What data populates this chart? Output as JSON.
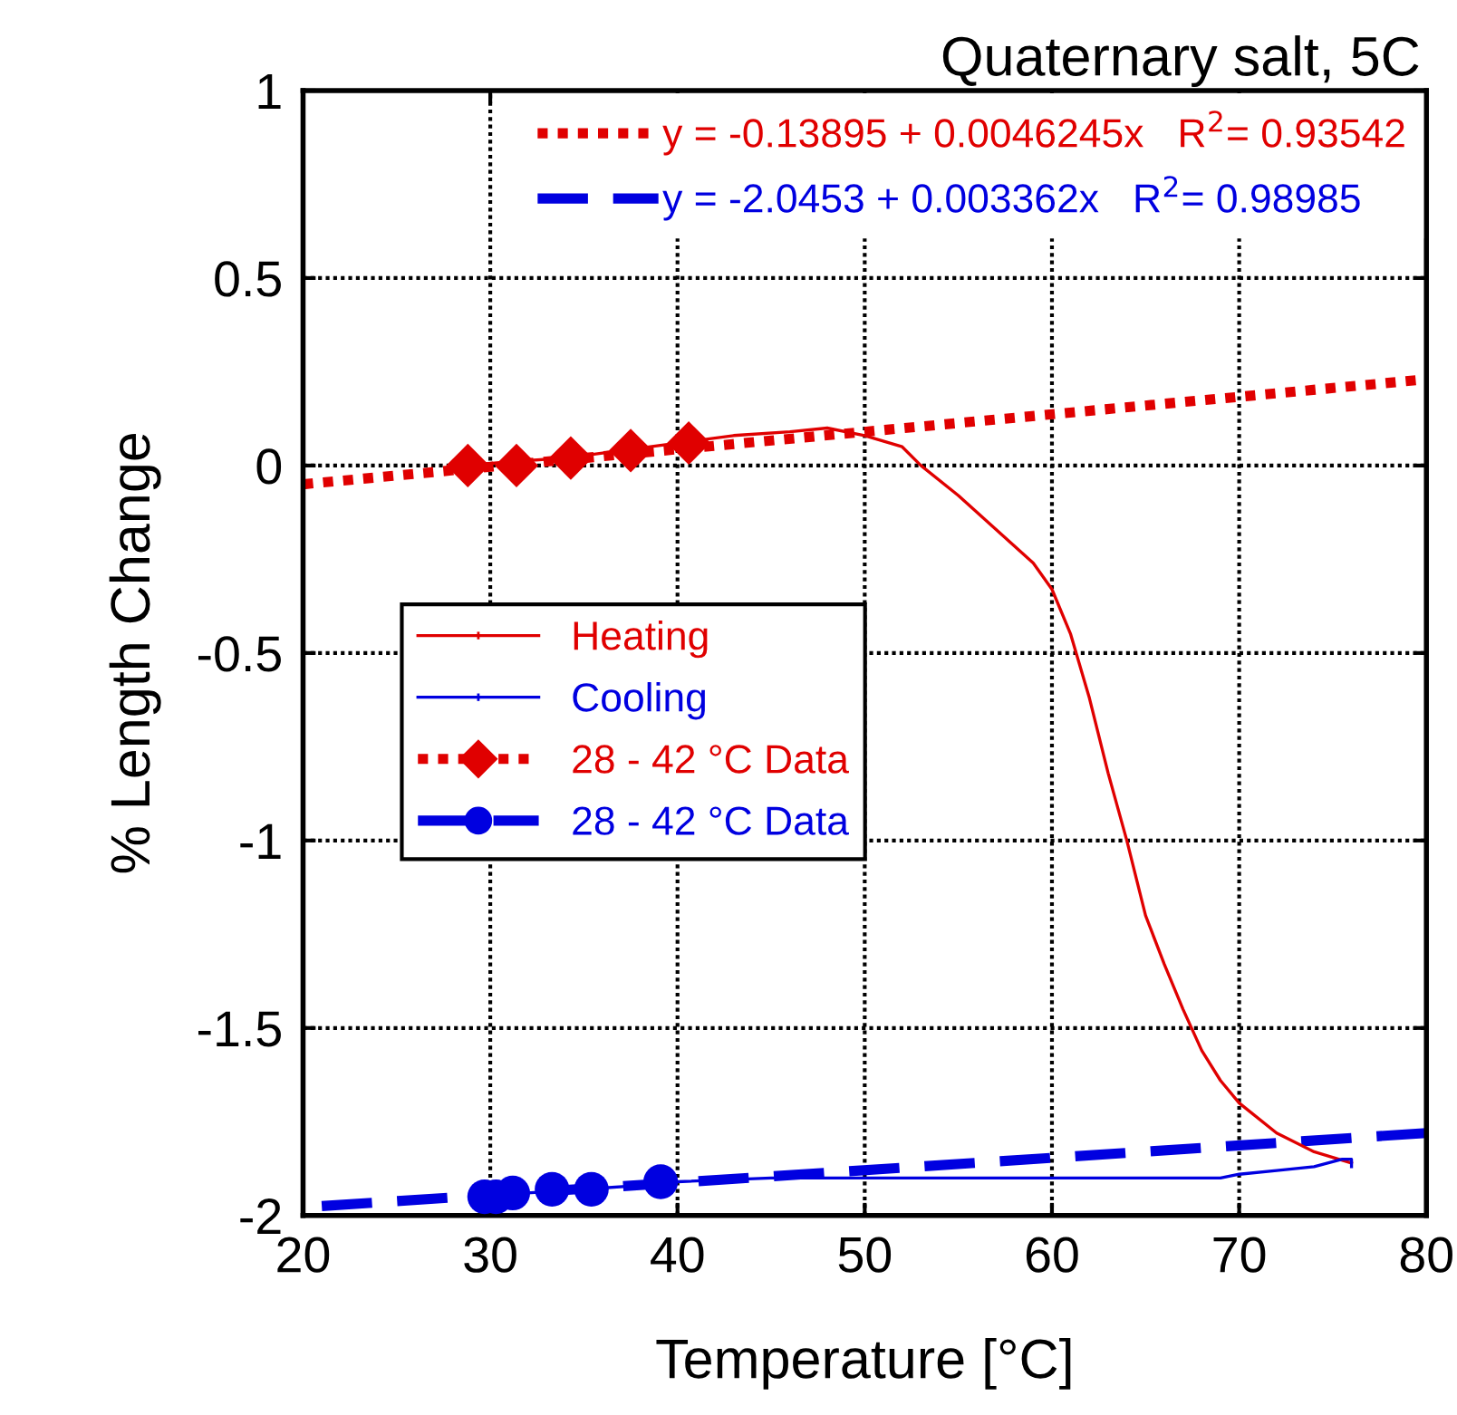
{
  "chart_data": {
    "type": "line",
    "title": "Quaternary salt, 5C",
    "xlabel": "Temperature [°C]",
    "ylabel": "% Length Change",
    "xlim": [
      20,
      80
    ],
    "xticks": [
      20,
      30,
      40,
      50,
      60,
      70,
      80
    ],
    "ylim": [
      -2,
      1
    ],
    "yticks": [
      -2,
      -1.5,
      -1,
      -0.5,
      0,
      0.5,
      1
    ],
    "grid": true,
    "legend": "left",
    "series": [
      {
        "name": "Heating",
        "color": "#e00000",
        "x": [
          28.8,
          31,
          34,
          37,
          40,
          43,
          46,
          48,
          50,
          52,
          53,
          55,
          57,
          59,
          60,
          61,
          62,
          63,
          64,
          65,
          66,
          67,
          68,
          69,
          70,
          72,
          74,
          76
        ],
        "values": [
          0.0,
          0.01,
          0.02,
          0.04,
          0.06,
          0.08,
          0.09,
          0.1,
          0.08,
          0.05,
          0.0,
          -0.08,
          -0.17,
          -0.26,
          -0.33,
          -0.45,
          -0.62,
          -0.82,
          -1.0,
          -1.2,
          -1.33,
          -1.45,
          -1.56,
          -1.64,
          -1.7,
          -1.78,
          -1.83,
          -1.86
        ]
      },
      {
        "name": "Cooling",
        "color": "#0000e0",
        "x": [
          29.4,
          32,
          35,
          38,
          40,
          45,
          50,
          55,
          60,
          65,
          69,
          70,
          72,
          74,
          75.5,
          76,
          76
        ],
        "values": [
          -1.95,
          -1.94,
          -1.93,
          -1.92,
          -1.91,
          -1.9,
          -1.9,
          -1.9,
          -1.9,
          -1.9,
          -1.9,
          -1.89,
          -1.88,
          -1.87,
          -1.85,
          -1.85,
          -1.87
        ]
      },
      {
        "name": "28 - 42 °C Data",
        "color": "#e00000",
        "type": "scatter",
        "marker": "diamond",
        "line_style": "dotted",
        "x": [
          28.8,
          31.4,
          34.3,
          37.5,
          40.6
        ],
        "values": [
          0.0,
          0.0,
          0.02,
          0.04,
          0.06
        ]
      },
      {
        "name": "28 - 42 °C Data",
        "color": "#0000e0",
        "type": "scatter",
        "marker": "circle",
        "line_style": "dashed",
        "x": [
          29.7,
          30.3,
          31.2,
          33.3,
          35.4,
          39.1
        ],
        "values": [
          -1.95,
          -1.95,
          -1.94,
          -1.93,
          -1.93,
          -1.91
        ]
      },
      {
        "name": "y = -0.13895 + 0.0046245x   R$^{2}$= 0.93542",
        "color": "#e00000",
        "line_style": "dotted",
        "x": [
          20,
          80
        ],
        "values": [
          -0.05,
          0.23
        ]
      },
      {
        "name": "y = -2.0453 + 0.003362x   R$^{2}$= 0.98985",
        "color": "#0000e0",
        "line_style": "dashed",
        "x": [
          21,
          80
        ],
        "values": [
          -1.975,
          -1.78
        ]
      }
    ]
  }
}
